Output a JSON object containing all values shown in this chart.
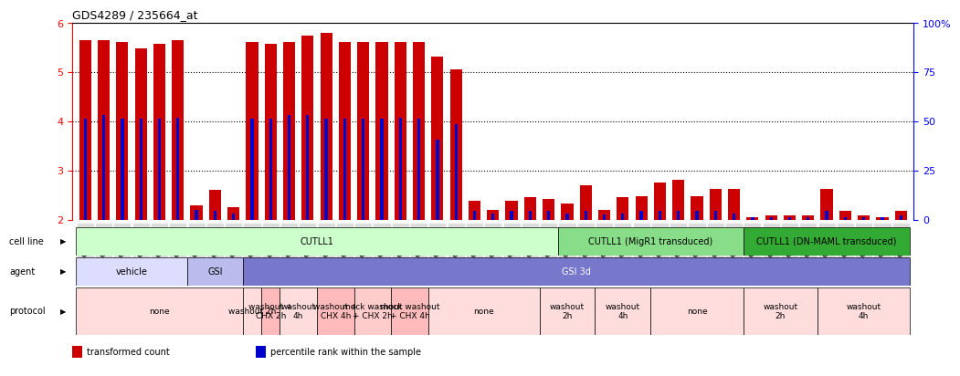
{
  "title": "GDS4289 / 235664_at",
  "samples": [
    "GSM731500",
    "GSM731501",
    "GSM731502",
    "GSM731503",
    "GSM731504",
    "GSM731505",
    "GSM731518",
    "GSM731519",
    "GSM731520",
    "GSM731506",
    "GSM731507",
    "GSM731508",
    "GSM731509",
    "GSM731510",
    "GSM731511",
    "GSM731512",
    "GSM731513",
    "GSM731514",
    "GSM731515",
    "GSM731516",
    "GSM731517",
    "GSM731521",
    "GSM731522",
    "GSM731523",
    "GSM731524",
    "GSM731525",
    "GSM731526",
    "GSM731527",
    "GSM731528",
    "GSM731529",
    "GSM731531",
    "GSM731532",
    "GSM731533",
    "GSM731534",
    "GSM731535",
    "GSM731536",
    "GSM731537",
    "GSM731538",
    "GSM731539",
    "GSM731540",
    "GSM731541",
    "GSM731542",
    "GSM731543",
    "GSM731544",
    "GSM731545"
  ],
  "red_values": [
    5.65,
    5.65,
    5.62,
    5.48,
    5.58,
    5.65,
    2.28,
    2.6,
    2.25,
    5.62,
    5.57,
    5.62,
    5.75,
    5.8,
    5.62,
    5.62,
    5.62,
    5.62,
    5.62,
    5.32,
    5.05,
    2.38,
    2.2,
    2.38,
    2.45,
    2.42,
    2.32,
    2.7,
    2.2,
    2.45,
    2.48,
    2.75,
    2.8,
    2.48,
    2.62,
    2.62,
    2.05,
    2.08,
    2.08,
    2.08,
    2.62,
    2.18,
    2.08,
    2.05,
    2.18
  ],
  "blue_values": [
    4.05,
    4.12,
    4.05,
    4.05,
    4.05,
    4.08,
    2.2,
    2.18,
    2.12,
    4.05,
    4.05,
    4.12,
    4.12,
    4.05,
    4.05,
    4.05,
    4.05,
    4.08,
    4.05,
    3.62,
    3.95,
    2.18,
    2.12,
    2.18,
    2.18,
    2.18,
    2.12,
    2.18,
    2.1,
    2.12,
    2.18,
    2.18,
    2.18,
    2.18,
    2.18,
    2.12,
    2.05,
    2.05,
    2.05,
    2.05,
    2.18,
    2.05,
    2.05,
    2.05,
    2.08
  ],
  "ylim": [
    2.0,
    6.0
  ],
  "yticks_left": [
    2,
    3,
    4,
    5,
    6
  ],
  "yticks_right": [
    0,
    25,
    50,
    75,
    100
  ],
  "ytick_right_labels": [
    "0",
    "25",
    "50",
    "75",
    "100%"
  ],
  "bar_color_red": "#cc0000",
  "bar_color_blue": "#0000cc",
  "bg_color": "#ffffff",
  "cell_line_groups": [
    {
      "label": "CUTLL1",
      "start": 0,
      "end": 26,
      "color": "#ccffcc"
    },
    {
      "label": "CUTLL1 (MigR1 transduced)",
      "start": 26,
      "end": 36,
      "color": "#88dd88"
    },
    {
      "label": "CUTLL1 (DN-MAML transduced)",
      "start": 36,
      "end": 45,
      "color": "#33aa33"
    }
  ],
  "agent_groups": [
    {
      "label": "vehicle",
      "start": 0,
      "end": 6,
      "color": "#ddddff"
    },
    {
      "label": "GSI",
      "start": 6,
      "end": 9,
      "color": "#bbbbee"
    },
    {
      "label": "GSI 3d",
      "start": 9,
      "end": 45,
      "color": "#7777cc"
    }
  ],
  "protocol_groups": [
    {
      "label": "none",
      "start": 0,
      "end": 9,
      "color": "#ffdddd"
    },
    {
      "label": "washout 2h",
      "start": 9,
      "end": 10,
      "color": "#ffdddd"
    },
    {
      "label": "washout +\nCHX 2h",
      "start": 10,
      "end": 11,
      "color": "#ffbbbb"
    },
    {
      "label": "washout\n4h",
      "start": 11,
      "end": 13,
      "color": "#ffdddd"
    },
    {
      "label": "washout +\nCHX 4h",
      "start": 13,
      "end": 15,
      "color": "#ffbbbb"
    },
    {
      "label": "mock washout\n+ CHX 2h",
      "start": 15,
      "end": 17,
      "color": "#ffcccc"
    },
    {
      "label": "mock washout\n+ CHX 4h",
      "start": 17,
      "end": 19,
      "color": "#ffbbbb"
    },
    {
      "label": "none",
      "start": 19,
      "end": 25,
      "color": "#ffdddd"
    },
    {
      "label": "washout\n2h",
      "start": 25,
      "end": 28,
      "color": "#ffdddd"
    },
    {
      "label": "washout\n4h",
      "start": 28,
      "end": 31,
      "color": "#ffdddd"
    },
    {
      "label": "none",
      "start": 31,
      "end": 36,
      "color": "#ffdddd"
    },
    {
      "label": "washout\n2h",
      "start": 36,
      "end": 40,
      "color": "#ffdddd"
    },
    {
      "label": "washout\n4h",
      "start": 40,
      "end": 45,
      "color": "#ffdddd"
    }
  ],
  "row_labels": [
    "cell line",
    "agent",
    "protocol"
  ],
  "legend_items": [
    {
      "label": "transformed count",
      "color": "#cc0000"
    },
    {
      "label": "percentile rank within the sample",
      "color": "#0000cc"
    }
  ]
}
